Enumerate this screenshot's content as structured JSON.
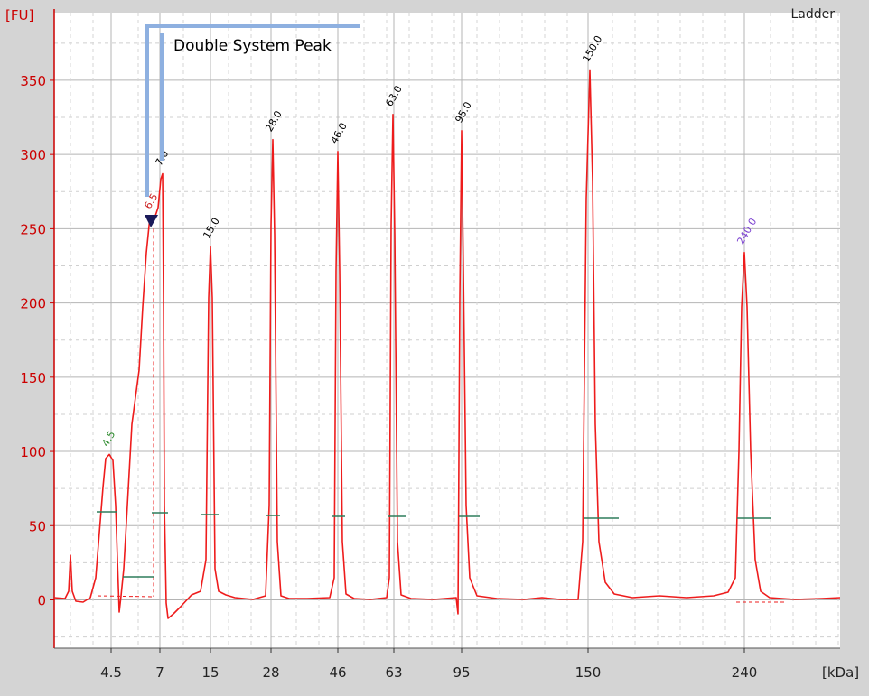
{
  "chart_data": {
    "type": "line",
    "title": "Ladder",
    "annotation": "Double System Peak",
    "y_unit": "[FU]",
    "x_unit": "[kDa]",
    "ylim": [
      -35,
      395
    ],
    "yticks": [
      0,
      50,
      100,
      150,
      200,
      250,
      300,
      350
    ],
    "y_tick_labels": [
      "0",
      "50",
      "100",
      "150",
      "200",
      "250",
      "300",
      "350"
    ],
    "x_tick_labels": [
      "4.5",
      "7",
      "15",
      "28",
      "46",
      "63",
      "95",
      "150",
      "240"
    ],
    "grid": true,
    "peaks": [
      {
        "size_kda": 4.5,
        "label": "4.5",
        "height": 98,
        "label_color": "#2e8b2e"
      },
      {
        "size_kda": 6.5,
        "label": "6.5",
        "height": 258,
        "label_color": "#cc2222"
      },
      {
        "size_kda": 7,
        "label": "7.0",
        "height": 287,
        "label_color": "#000000"
      },
      {
        "size_kda": 15,
        "label": "15.0",
        "height": 238,
        "label_color": "#000000"
      },
      {
        "size_kda": 28,
        "label": "28.0",
        "height": 310,
        "label_color": "#000000"
      },
      {
        "size_kda": 46,
        "label": "46.0",
        "height": 302,
        "label_color": "#000000"
      },
      {
        "size_kda": 63,
        "label": "63.0",
        "height": 327,
        "label_color": "#000000"
      },
      {
        "size_kda": 95,
        "label": "95.0",
        "height": 316,
        "label_color": "#000000"
      },
      {
        "size_kda": 150,
        "label": "150.0",
        "height": 357,
        "label_color": "#000000"
      },
      {
        "size_kda": 240,
        "label": "240.0",
        "height": 234,
        "label_color": "#7a3fd0"
      }
    ],
    "colors": {
      "trace": "#ee1c1c",
      "axis": "#cc0000",
      "annotation_bracket": "#8eb0e0",
      "marker": "#1a1a5a",
      "baseline_marks": "#2e7d5b",
      "grid": "#b4b4b4"
    }
  }
}
